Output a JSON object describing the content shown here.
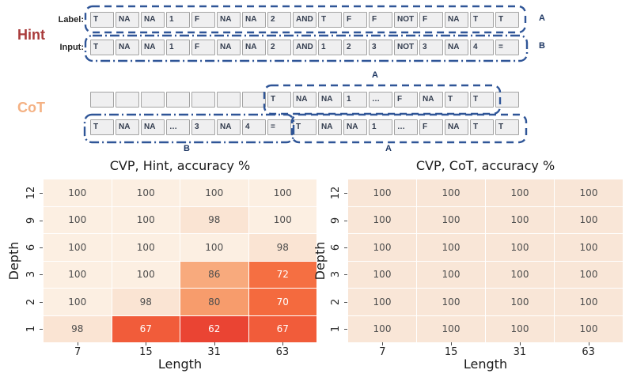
{
  "figure": {
    "hint": {
      "section_label": "Hint",
      "label_caption": "Label:",
      "input_caption": "Input:",
      "label_tokens": [
        "T",
        "NA",
        "NA",
        "1",
        "F",
        "NA",
        "NA",
        "2",
        "AND",
        "T",
        "F",
        "F",
        "NOT",
        "F",
        "NA",
        "T",
        "T"
      ],
      "input_tokens": [
        "T",
        "NA",
        "NA",
        "1",
        "F",
        "NA",
        "NA",
        "2",
        "AND",
        "1",
        "2",
        "3",
        "NOT",
        "3",
        "NA",
        "4",
        "="
      ],
      "label_tag": "A",
      "input_tag": "B"
    },
    "cot": {
      "section_label": "CoT",
      "row1_tokens": [
        "",
        "",
        "",
        "",
        "",
        "",
        "",
        "T",
        "NA",
        "NA",
        "1",
        "…",
        "F",
        "NA",
        "T",
        "T",
        ""
      ],
      "row2_tokens": [
        "T",
        "NA",
        "NA",
        "…",
        "3",
        "NA",
        "4",
        "=",
        "T",
        "NA",
        "NA",
        "1",
        "…",
        "F",
        "NA",
        "T",
        "T"
      ],
      "top_tag": "A",
      "bottom_tag_b": "B",
      "bottom_tag_a": "A"
    },
    "colors": {
      "hint_label": "#a93b3b",
      "cot_label": "#f4b183",
      "box_stroke": "#2f5597",
      "token_cell_bg": "#efeff0",
      "token_text": "#323c4e"
    }
  },
  "chart_data": [
    {
      "type": "heatmap",
      "title": "CVP, Hint, accuracy %",
      "xlabel": "Length",
      "ylabel": "Depth",
      "x_ticks": [
        "7",
        "15",
        "31",
        "63"
      ],
      "y_ticks": [
        "12",
        "9",
        "6",
        "3",
        "2",
        "1"
      ],
      "values": [
        [
          100,
          100,
          100,
          100
        ],
        [
          100,
          100,
          98,
          100
        ],
        [
          100,
          100,
          100,
          98
        ],
        [
          100,
          100,
          86,
          72
        ],
        [
          100,
          98,
          80,
          70
        ],
        [
          98,
          67,
          62,
          67
        ]
      ],
      "value_colors": {
        "100": "#fcefe2",
        "98": "#fae4d3",
        "86": "#f8aa7d",
        "80": "#f79c6c",
        "72": "#f56f42",
        "70": "#f46a3e",
        "67": "#f15c3a",
        "62": "#ea4433"
      },
      "white_text_values": [
        72,
        70,
        67,
        62
      ]
    },
    {
      "type": "heatmap",
      "title": "CVP, CoT, accuracy %",
      "xlabel": "Length",
      "ylabel": "Depth",
      "x_ticks": [
        "7",
        "15",
        "31",
        "63"
      ],
      "y_ticks": [
        "12",
        "9",
        "6",
        "3",
        "2",
        "1"
      ],
      "values": [
        [
          100,
          100,
          100,
          100
        ],
        [
          100,
          100,
          100,
          100
        ],
        [
          100,
          100,
          100,
          100
        ],
        [
          100,
          100,
          100,
          100
        ],
        [
          100,
          100,
          100,
          100
        ],
        [
          100,
          100,
          100,
          100
        ]
      ],
      "value_colors": {
        "100": "#f9e6d7"
      },
      "white_text_values": []
    }
  ]
}
